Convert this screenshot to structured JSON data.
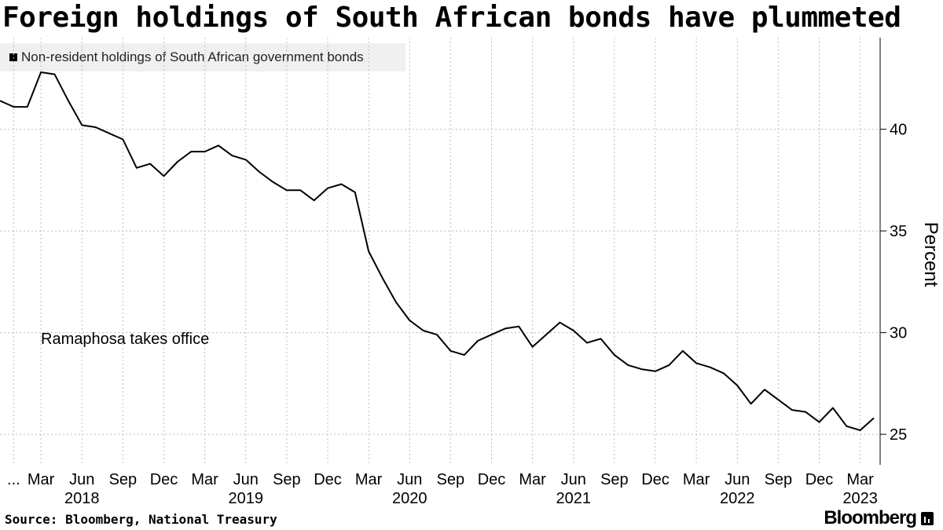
{
  "title": "Foreign holdings of South African bonds have plummeted",
  "source": "Source: Bloomberg, National Treasury",
  "brand": "Bloomberg",
  "colors": {
    "line": "#000000",
    "grid": "#bdbdbd",
    "legend_bg": "#f0f0f0"
  },
  "chart_data": {
    "type": "line",
    "legend": [
      "Non-resident holdings of South African government bonds"
    ],
    "legend_placement": "top-left",
    "grid": true,
    "ylabel": "Percent",
    "yaxis_side": "right",
    "ylim": [
      23.5,
      44.5
    ],
    "y_ticks": [
      25,
      30,
      35,
      40
    ],
    "annotation": "Ramaphosa takes office",
    "x_start": "2017-12",
    "x_end": "2023-04",
    "month_ticks": [
      {
        "label": "...",
        "date": "2018-01"
      },
      {
        "label": "Mar",
        "date": "2018-03"
      },
      {
        "label": "Jun",
        "date": "2018-06"
      },
      {
        "label": "Sep",
        "date": "2018-09"
      },
      {
        "label": "Dec",
        "date": "2018-12"
      },
      {
        "label": "Mar",
        "date": "2019-03"
      },
      {
        "label": "Jun",
        "date": "2019-06"
      },
      {
        "label": "Sep",
        "date": "2019-09"
      },
      {
        "label": "Dec",
        "date": "2019-12"
      },
      {
        "label": "Mar",
        "date": "2020-03"
      },
      {
        "label": "Jun",
        "date": "2020-06"
      },
      {
        "label": "Sep",
        "date": "2020-09"
      },
      {
        "label": "Dec",
        "date": "2020-12"
      },
      {
        "label": "Mar",
        "date": "2021-03"
      },
      {
        "label": "Jun",
        "date": "2021-06"
      },
      {
        "label": "Sep",
        "date": "2021-09"
      },
      {
        "label": "Dec",
        "date": "2021-12"
      },
      {
        "label": "Mar",
        "date": "2022-03"
      },
      {
        "label": "Jun",
        "date": "2022-06"
      },
      {
        "label": "Sep",
        "date": "2022-09"
      },
      {
        "label": "Dec",
        "date": "2022-12"
      },
      {
        "label": "Mar",
        "date": "2023-03"
      }
    ],
    "year_labels": [
      {
        "label": "2018",
        "date": "2018-06"
      },
      {
        "label": "2019",
        "date": "2019-06"
      },
      {
        "label": "2020",
        "date": "2020-06"
      },
      {
        "label": "2021",
        "date": "2021-06"
      },
      {
        "label": "2022",
        "date": "2022-06"
      },
      {
        "label": "2023",
        "date": "2023-03"
      }
    ],
    "series": [
      {
        "x": [
          "2017-12",
          "2018-01",
          "2018-02",
          "2018-03",
          "2018-04",
          "2018-05",
          "2018-06",
          "2018-07",
          "2018-08",
          "2018-09",
          "2018-10",
          "2018-11",
          "2018-12",
          "2019-01",
          "2019-02",
          "2019-03",
          "2019-04",
          "2019-05",
          "2019-06",
          "2019-07",
          "2019-08",
          "2019-09",
          "2019-10",
          "2019-11",
          "2019-12",
          "2020-01",
          "2020-02",
          "2020-03",
          "2020-04",
          "2020-05",
          "2020-06",
          "2020-07",
          "2020-08",
          "2020-09",
          "2020-10",
          "2020-11",
          "2020-12",
          "2021-01",
          "2021-02",
          "2021-03",
          "2021-04",
          "2021-05",
          "2021-06",
          "2021-07",
          "2021-08",
          "2021-09",
          "2021-10",
          "2021-11",
          "2021-12",
          "2022-01",
          "2022-02",
          "2022-03",
          "2022-04",
          "2022-05",
          "2022-06",
          "2022-07",
          "2022-08",
          "2022-09",
          "2022-10",
          "2022-11",
          "2022-12",
          "2023-01",
          "2023-02",
          "2023-03",
          "2023-04"
        ],
        "values": [
          41.4,
          41.1,
          41.1,
          42.8,
          42.7,
          41.4,
          40.2,
          40.1,
          39.8,
          39.5,
          38.1,
          38.3,
          37.7,
          38.4,
          38.9,
          38.9,
          39.2,
          38.7,
          38.5,
          37.9,
          37.4,
          37.0,
          37.0,
          36.5,
          37.1,
          37.3,
          36.9,
          34.0,
          32.7,
          31.5,
          30.6,
          30.1,
          29.9,
          29.1,
          28.9,
          29.6,
          29.9,
          30.2,
          30.3,
          29.3,
          29.9,
          30.5,
          30.1,
          29.5,
          29.7,
          28.9,
          28.4,
          28.2,
          28.1,
          28.4,
          29.1,
          28.5,
          28.3,
          28.0,
          27.4,
          26.5,
          27.2,
          26.7,
          26.2,
          26.1,
          25.6,
          26.3,
          25.4,
          25.2,
          25.8
        ]
      }
    ]
  }
}
